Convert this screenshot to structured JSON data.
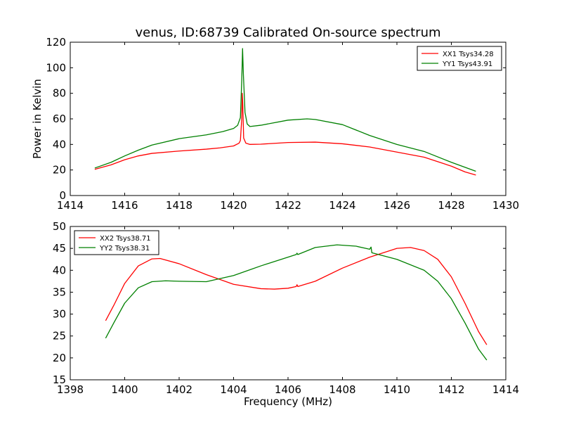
{
  "title": "venus, ID:68739 Calibrated On-source spectrum",
  "chart_data": [
    {
      "type": "line",
      "title": "venus, ID:68739 Calibrated On-source spectrum",
      "xlabel": "",
      "ylabel": "Power in Kelvin",
      "xlim": [
        1414,
        1430
      ],
      "ylim": [
        0,
        120
      ],
      "xticks": [
        1414,
        1416,
        1418,
        1420,
        1422,
        1424,
        1426,
        1428,
        1430
      ],
      "yticks": [
        0,
        20,
        40,
        60,
        80,
        100,
        120
      ],
      "grid": false,
      "legend_position": "top-right",
      "series": [
        {
          "name": "XX1 Tsys34.28",
          "color": "#ff0000",
          "points": [
            [
              1414.9,
              20.5
            ],
            [
              1415.5,
              24
            ],
            [
              1416,
              28
            ],
            [
              1416.5,
              31
            ],
            [
              1417,
              33
            ],
            [
              1418,
              34.8
            ],
            [
              1419,
              36.3
            ],
            [
              1419.5,
              37.3
            ],
            [
              1420,
              38.8
            ],
            [
              1420.2,
              41
            ],
            [
              1420.25,
              43
            ],
            [
              1420.3,
              60
            ],
            [
              1420.32,
              80
            ],
            [
              1420.34,
              70
            ],
            [
              1420.37,
              45
            ],
            [
              1420.45,
              41
            ],
            [
              1420.6,
              40
            ],
            [
              1421,
              40.2
            ],
            [
              1422,
              41.5
            ],
            [
              1423,
              41.8
            ],
            [
              1424,
              40.5
            ],
            [
              1425,
              38
            ],
            [
              1426,
              34
            ],
            [
              1427,
              30
            ],
            [
              1428,
              23
            ],
            [
              1428.5,
              18.5
            ],
            [
              1428.9,
              16
            ]
          ]
        },
        {
          "name": "YY1 Tsys43.91",
          "color": "#008000",
          "points": [
            [
              1414.9,
              21.5
            ],
            [
              1415.5,
              26
            ],
            [
              1416,
              31
            ],
            [
              1416.5,
              35.5
            ],
            [
              1417,
              39.5
            ],
            [
              1418,
              44.5
            ],
            [
              1419,
              47.5
            ],
            [
              1419.6,
              50
            ],
            [
              1420,
              52.5
            ],
            [
              1420.15,
              55
            ],
            [
              1420.25,
              61
            ],
            [
              1420.3,
              90
            ],
            [
              1420.33,
              115
            ],
            [
              1420.36,
              95
            ],
            [
              1420.42,
              65
            ],
            [
              1420.5,
              56
            ],
            [
              1420.6,
              54
            ],
            [
              1421,
              55
            ],
            [
              1422,
              59
            ],
            [
              1422.7,
              60
            ],
            [
              1423,
              59.5
            ],
            [
              1424,
              55.5
            ],
            [
              1425,
              47
            ],
            [
              1426,
              40
            ],
            [
              1427,
              34.5
            ],
            [
              1428,
              26
            ],
            [
              1428.9,
              19
            ]
          ]
        }
      ]
    },
    {
      "type": "line",
      "title": "",
      "xlabel": "Frequency (MHz)",
      "ylabel": "",
      "xlim": [
        1398,
        1414
      ],
      "ylim": [
        15,
        50
      ],
      "xticks": [
        1398,
        1400,
        1402,
        1404,
        1406,
        1408,
        1410,
        1412,
        1414
      ],
      "yticks": [
        15,
        20,
        25,
        30,
        35,
        40,
        45,
        50
      ],
      "grid": false,
      "legend_position": "top-left",
      "series": [
        {
          "name": "XX2 Tsys38.71",
          "color": "#ff0000",
          "points": [
            [
              1399.3,
              28.5
            ],
            [
              1399.6,
              32
            ],
            [
              1400,
              37
            ],
            [
              1400.5,
              41
            ],
            [
              1401,
              42.6
            ],
            [
              1401.3,
              42.7
            ],
            [
              1402,
              41.5
            ],
            [
              1403,
              39
            ],
            [
              1404,
              36.8
            ],
            [
              1405,
              35.8
            ],
            [
              1405.5,
              35.7
            ],
            [
              1406,
              35.9
            ],
            [
              1406.3,
              36.3
            ],
            [
              1406.33,
              36.7
            ],
            [
              1406.36,
              36.3
            ],
            [
              1407,
              37.5
            ],
            [
              1408,
              40.5
            ],
            [
              1409,
              43
            ],
            [
              1410,
              45
            ],
            [
              1410.5,
              45.2
            ],
            [
              1411,
              44.5
            ],
            [
              1411.5,
              42.5
            ],
            [
              1412,
              38.5
            ],
            [
              1412.5,
              32.5
            ],
            [
              1413,
              26
            ],
            [
              1413.3,
              23
            ]
          ]
        },
        {
          "name": "YY2 Tsys38.31",
          "color": "#008000",
          "points": [
            [
              1399.3,
              24.5
            ],
            [
              1399.6,
              28
            ],
            [
              1400,
              32.5
            ],
            [
              1400.5,
              36
            ],
            [
              1401,
              37.4
            ],
            [
              1401.5,
              37.6
            ],
            [
              1402,
              37.5
            ],
            [
              1403,
              37.4
            ],
            [
              1404,
              38.8
            ],
            [
              1405,
              41
            ],
            [
              1406,
              43
            ],
            [
              1406.3,
              43.6
            ],
            [
              1406.33,
              43.9
            ],
            [
              1406.36,
              43.6
            ],
            [
              1407,
              45.2
            ],
            [
              1407.8,
              45.8
            ],
            [
              1408.5,
              45.5
            ],
            [
              1409,
              44.8
            ],
            [
              1409.05,
              45.3
            ],
            [
              1409.08,
              44
            ],
            [
              1410,
              42.5
            ],
            [
              1411,
              40
            ],
            [
              1411.5,
              37.5
            ],
            [
              1412,
              33.5
            ],
            [
              1412.5,
              28
            ],
            [
              1413,
              22
            ],
            [
              1413.3,
              19.5
            ]
          ]
        }
      ]
    }
  ]
}
